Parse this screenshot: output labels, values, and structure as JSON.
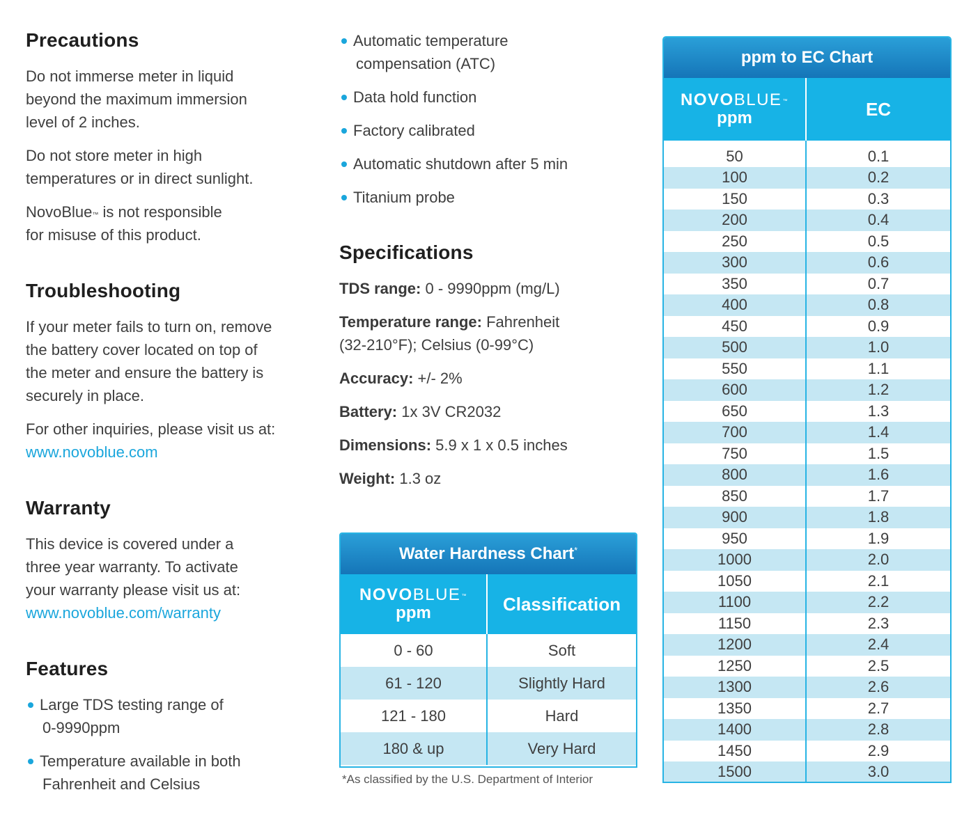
{
  "precautions": {
    "heading": "Precautions",
    "p1": [
      "Do not immerse meter in liquid",
      "beyond the maximum  immersion",
      "level of 2 inches."
    ],
    "p2": [
      "Do not store meter in high",
      "temperatures or in direct sunlight."
    ],
    "p3_brand": "NovoBlue",
    "p3_tm": "™",
    "p3_rest": " is not responsible",
    "p3_line2": "for misuse of this product."
  },
  "troubleshooting": {
    "heading": "Troubleshooting",
    "p1": [
      "If your meter fails to turn on, remove",
      "the battery cover located on top of",
      "the meter and ensure the battery is",
      "securely in place."
    ],
    "p2": "For other inquiries, please visit us at:",
    "link": "www.novoblue.com"
  },
  "warranty": {
    "heading": "Warranty",
    "p1": [
      "This device is covered under a",
      "three year warranty. To activate",
      "your warranty please visit us at:"
    ],
    "link": "www.novoblue.com/warranty"
  },
  "features": {
    "heading": "Features",
    "items": [
      {
        "line1": "Large TDS testing range of",
        "line2": "0-9990ppm"
      },
      {
        "line1": "Temperature available in both",
        "line2": "Fahrenheit and Celsius"
      },
      {
        "line1": "Automatic temperature",
        "line2": "compensation (ATC)"
      },
      {
        "line1": "Data hold function",
        "line2": ""
      },
      {
        "line1": "Factory calibrated",
        "line2": ""
      },
      {
        "line1": "Automatic shutdown after 5 min",
        "line2": ""
      },
      {
        "line1": "Titanium probe",
        "line2": ""
      }
    ]
  },
  "specifications": {
    "heading": "Specifications",
    "items": [
      {
        "label": "TDS range:",
        "value": " 0 - 9990ppm (mg/L)",
        "value2": ""
      },
      {
        "label": "Temperature range:",
        "value": " Fahrenheit",
        "value2": "(32-210°F); Celsius (0-99°C)"
      },
      {
        "label": "Accuracy:",
        "value": " +/- 2%",
        "value2": ""
      },
      {
        "label": "Battery:",
        "value": " 1x 3V CR2032",
        "value2": ""
      },
      {
        "label": "Dimensions:",
        "value": " 5.9 x 1 x 0.5 inches",
        "value2": ""
      },
      {
        "label": "Weight:",
        "value": " 1.3 oz",
        "value2": ""
      }
    ]
  },
  "brand": {
    "novo": "NOVO",
    "blue": "BLUE",
    "tm": "™",
    "unit": "ppm"
  },
  "hardness_chart": {
    "title": "Water Hardness Chart",
    "title_mark": "*",
    "col2_header": "Classification",
    "rows": [
      {
        "ppm": "0 - 60",
        "class": "Soft"
      },
      {
        "ppm": "61 - 120",
        "class": "Slightly Hard"
      },
      {
        "ppm": "121 - 180",
        "class": "Hard"
      },
      {
        "ppm": "180 & up",
        "class": "Very Hard"
      }
    ],
    "footnote": "*As classified by the U.S. Department of Interior"
  },
  "ec_chart": {
    "title": "ppm to EC Chart",
    "col2_header": "EC",
    "rows": [
      [
        "50",
        "0.1"
      ],
      [
        "100",
        "0.2"
      ],
      [
        "150",
        "0.3"
      ],
      [
        "200",
        "0.4"
      ],
      [
        "250",
        "0.5"
      ],
      [
        "300",
        "0.6"
      ],
      [
        "350",
        "0.7"
      ],
      [
        "400",
        "0.8"
      ],
      [
        "450",
        "0.9"
      ],
      [
        "500",
        "1.0"
      ],
      [
        "550",
        "1.1"
      ],
      [
        "600",
        "1.2"
      ],
      [
        "650",
        "1.3"
      ],
      [
        "700",
        "1.4"
      ],
      [
        "750",
        "1.5"
      ],
      [
        "800",
        "1.6"
      ],
      [
        "850",
        "1.7"
      ],
      [
        "900",
        "1.8"
      ],
      [
        "950",
        "1.9"
      ],
      [
        "1000",
        "2.0"
      ],
      [
        "1050",
        "2.1"
      ],
      [
        "1100",
        "2.2"
      ],
      [
        "1150",
        "2.3"
      ],
      [
        "1200",
        "2.4"
      ],
      [
        "1250",
        "2.5"
      ],
      [
        "1300",
        "2.6"
      ],
      [
        "1350",
        "2.7"
      ],
      [
        "1400",
        "2.8"
      ],
      [
        "1450",
        "2.9"
      ],
      [
        "1500",
        "3.0"
      ]
    ]
  },
  "colors": {
    "accent": "#1aa6dc",
    "header_blue": "#17b3e6",
    "title_blue": "#1575b8",
    "row_alt": "#c5e7f3"
  }
}
